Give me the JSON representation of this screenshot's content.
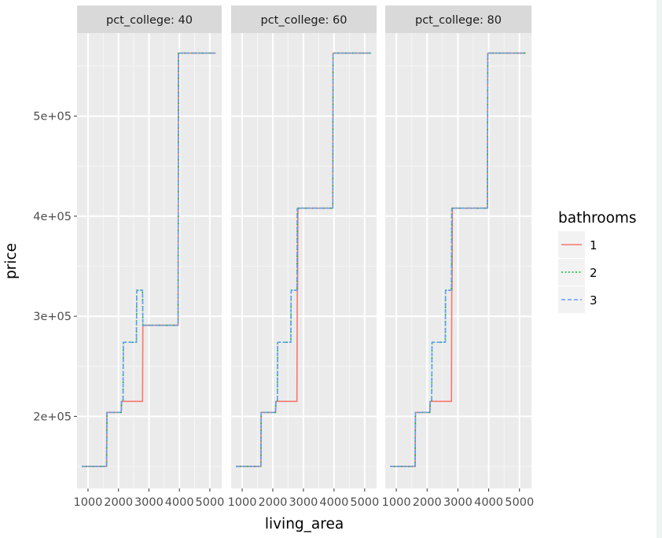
{
  "chart_data": {
    "type": "line",
    "facet_var": "pct_college",
    "facets": [
      "pct_college: 40",
      "pct_college: 60",
      "pct_college: 80"
    ],
    "xlabel": "living_area",
    "ylabel": "price",
    "x_ticks": [
      1000,
      2000,
      3000,
      4000,
      5000
    ],
    "x_tick_labels": [
      "1000",
      "2000",
      "3000",
      "4000",
      "5000"
    ],
    "y_ticks": [
      200000,
      300000,
      400000,
      500000
    ],
    "y_tick_labels": [
      "2e+05",
      "3e+05",
      "4e+05",
      "5e+05"
    ],
    "xlim": [
      640,
      5390
    ],
    "ylim": [
      128000,
      583000
    ],
    "grid": true,
    "legend": {
      "title": "bathrooms",
      "position": "right",
      "items": [
        "1",
        "2",
        "3"
      ]
    },
    "colors": {
      "1": "#F8766D",
      "2": "#00BA38",
      "3": "#619CFF"
    },
    "line_styles": {
      "1": "solid",
      "2": "dotted",
      "3": "dashed"
    },
    "series": [
      {
        "facet": 0,
        "name": "1",
        "x": [
          800,
          1610,
          1620,
          2090,
          2100,
          2790,
          2800,
          3960,
          3970,
          5200
        ],
        "y": [
          150000,
          150000,
          204000,
          204000,
          215000,
          215000,
          291000,
          291000,
          563000,
          563000
        ]
      },
      {
        "facet": 0,
        "name": "2",
        "x": [
          800,
          1610,
          1620,
          2090,
          2100,
          2150,
          2160,
          2590,
          2600,
          2790,
          2800,
          3960,
          3970,
          5200
        ],
        "y": [
          150000,
          150000,
          204000,
          204000,
          215000,
          215000,
          274000,
          274000,
          326000,
          326000,
          291000,
          291000,
          563000,
          563000
        ]
      },
      {
        "facet": 0,
        "name": "3",
        "x": [
          800,
          1610,
          1620,
          2090,
          2100,
          2150,
          2160,
          2590,
          2600,
          2790,
          2800,
          3960,
          3970,
          5200
        ],
        "y": [
          150000,
          150000,
          204000,
          204000,
          215000,
          215000,
          274000,
          274000,
          326000,
          326000,
          291000,
          291000,
          563000,
          563000
        ]
      },
      {
        "facet": 1,
        "name": "1",
        "x": [
          800,
          1610,
          1620,
          2090,
          2100,
          2790,
          2800,
          2810,
          2820,
          3960,
          3970,
          5200
        ],
        "y": [
          150000,
          150000,
          204000,
          204000,
          215000,
          215000,
          326000,
          326000,
          408000,
          408000,
          563000,
          563000
        ]
      },
      {
        "facet": 1,
        "name": "2",
        "x": [
          800,
          1610,
          1620,
          2090,
          2100,
          2150,
          2160,
          2590,
          2600,
          2790,
          2800,
          3960,
          3970,
          5200
        ],
        "y": [
          150000,
          150000,
          204000,
          204000,
          215000,
          215000,
          274000,
          274000,
          326000,
          326000,
          408000,
          408000,
          563000,
          563000
        ]
      },
      {
        "facet": 1,
        "name": "3",
        "x": [
          800,
          1610,
          1620,
          2090,
          2100,
          2150,
          2160,
          2590,
          2600,
          2790,
          2800,
          3960,
          3970,
          5200
        ],
        "y": [
          150000,
          150000,
          204000,
          204000,
          215000,
          215000,
          274000,
          274000,
          326000,
          326000,
          408000,
          408000,
          563000,
          563000
        ]
      },
      {
        "facet": 2,
        "name": "1",
        "x": [
          800,
          1610,
          1620,
          2090,
          2100,
          2790,
          2800,
          2810,
          2820,
          3960,
          3970,
          5200
        ],
        "y": [
          150000,
          150000,
          204000,
          204000,
          215000,
          215000,
          326000,
          326000,
          408000,
          408000,
          563000,
          563000
        ]
      },
      {
        "facet": 2,
        "name": "2",
        "x": [
          800,
          1610,
          1620,
          2090,
          2100,
          2150,
          2160,
          2590,
          2600,
          2790,
          2800,
          3960,
          3970,
          5200
        ],
        "y": [
          150000,
          150000,
          204000,
          204000,
          215000,
          215000,
          274000,
          274000,
          326000,
          326000,
          408000,
          408000,
          563000,
          563000
        ]
      },
      {
        "facet": 2,
        "name": "3",
        "x": [
          800,
          1610,
          1620,
          2090,
          2100,
          2150,
          2160,
          2590,
          2600,
          2790,
          2800,
          3960,
          3970,
          5200
        ],
        "y": [
          150000,
          150000,
          204000,
          204000,
          215000,
          215000,
          274000,
          274000,
          326000,
          326000,
          408000,
          408000,
          563000,
          563000
        ]
      }
    ]
  }
}
